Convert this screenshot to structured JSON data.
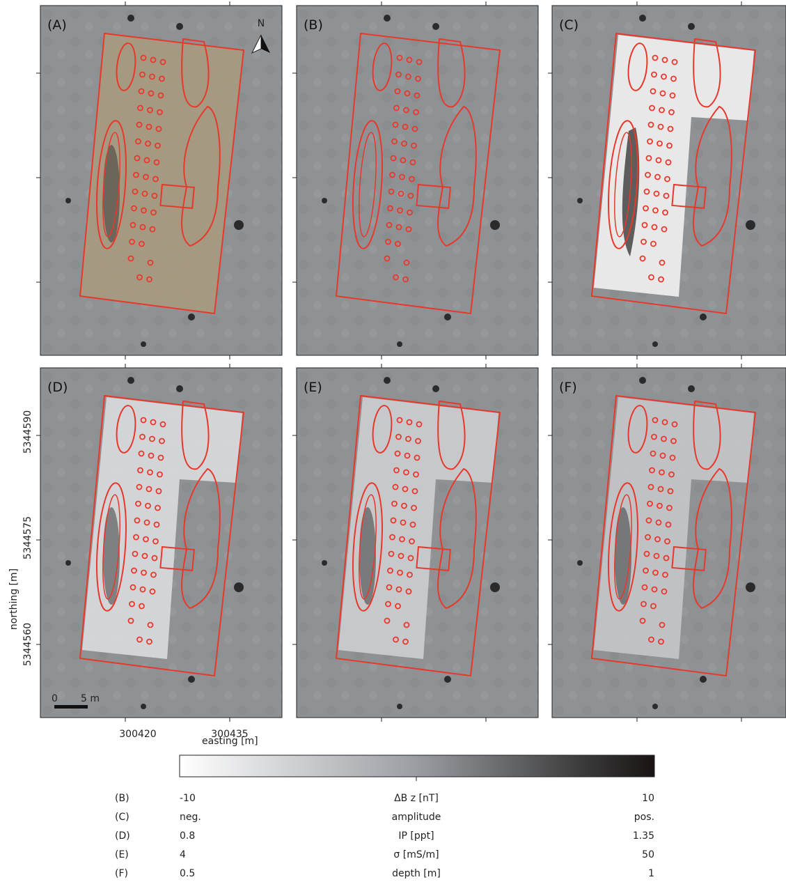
{
  "panels": [
    {
      "label": "(A)"
    },
    {
      "label": "(B)"
    },
    {
      "label": "(C)"
    },
    {
      "label": "(D)"
    },
    {
      "label": "(E)"
    },
    {
      "label": "(F)"
    }
  ],
  "north": "N",
  "scale_bar": {
    "start": "0",
    "end": "5 m"
  },
  "axes": {
    "x_title": "easting [m]",
    "y_title": "northing [m]",
    "x_ticks": [
      "300420",
      "300435"
    ],
    "y_ticks": [
      "5344560",
      "5344575",
      "5344590"
    ]
  },
  "colorbar": {
    "rows": [
      {
        "panel": "(B)",
        "min": "-10",
        "quantity": "ΔB z [nT]",
        "max": "10"
      },
      {
        "panel": "(C)",
        "min": "neg.",
        "quantity": "amplitude",
        "max": "pos."
      },
      {
        "panel": "(D)",
        "min": "0.8",
        "quantity": "IP [ppt]",
        "max": "1.35"
      },
      {
        "panel": "(E)",
        "min": "4",
        "quantity": "σ [mS/m]",
        "max": "50"
      },
      {
        "panel": "(F)",
        "min": "0.5",
        "quantity": "depth [m]",
        "max": "1"
      }
    ]
  }
}
